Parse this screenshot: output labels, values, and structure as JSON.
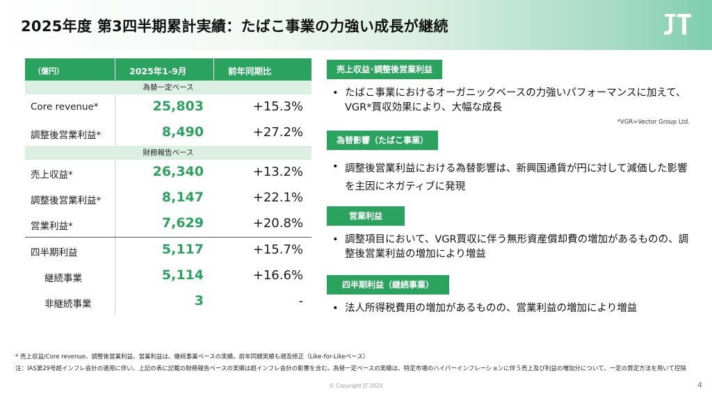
{
  "header": {
    "title": "2025年度 第3四半期累計実績：たばこ事業の力強い成長が継続",
    "logo": "JT"
  },
  "table": {
    "col_unit": "（億円）",
    "col_period": "2025年1-9月",
    "col_yoy": "前年同期比",
    "section1": "為替一定ベース",
    "section2": "財務報告ベース",
    "rows_fx": [
      {
        "label": "Core revenue*",
        "value": "25,803",
        "yoy": "+15.3%"
      },
      {
        "label": "調整後営業利益*",
        "value": "8,490",
        "yoy": "+27.2%"
      }
    ],
    "rows_report": [
      {
        "label": "売上収益*",
        "value": "26,340",
        "yoy": "+13.2%"
      },
      {
        "label": "調整後営業利益*",
        "value": "8,147",
        "yoy": "+22.1%"
      },
      {
        "label": "営業利益*",
        "value": "7,629",
        "yoy": "+20.8%"
      }
    ],
    "rows_net": [
      {
        "label": "四半期利益",
        "value": "5,117",
        "yoy": "+15.7%"
      },
      {
        "label": "継続事業",
        "value": "5,114",
        "yoy": "+16.6%"
      },
      {
        "label": "非継続事業",
        "value": "3",
        "yoy": "-"
      }
    ]
  },
  "sections": [
    {
      "heading": "売上収益･調整後営業利益",
      "bullet": "たばこ事業におけるオーガニックベースの力強いパフォーマンスに加えて、VGR*買収効果により、大幅な成長"
    },
    {
      "heading": "為替影響（たばこ事業）",
      "bullet": "調整後営業利益における為替影響は、新興国通貨が円に対して減価した影響を主因にネガティブに発現"
    },
    {
      "heading": "営業利益",
      "bullet": "調整項目において、VGR買収に伴う無形資産償却費の増加があるものの、調整後営業利益の増加により増益"
    },
    {
      "heading": "四半期利益（継続事業）",
      "bullet": "法人所得税費用の増加があるものの、営業利益の増加により増益"
    }
  ],
  "vgr_note": "*VGR=Vector Group Ltd.",
  "footnotes": {
    "note1": "* 売上収益/Core revenue、調整後営業利益、営業利益は、継続事業ベースの実績。前年同期実績も遡及修正（Like-for-Likeベース）",
    "note2": "注：IAS第29号超インフレ会計の適用に伴い、上記の表に記載の財務報告ベースの実績は超インフレ会計の影響を含む。為替一定ベースの実績は、特定市場のハイパーインフレーションに伴う売上及び利益の増加分について、一定の算定方法を用いて控除"
  },
  "copyright": "© Copyright JT 2025",
  "page_number": "4",
  "colors": {
    "accent": "#2aa35e",
    "subhead_bg": "#dcefe3"
  }
}
